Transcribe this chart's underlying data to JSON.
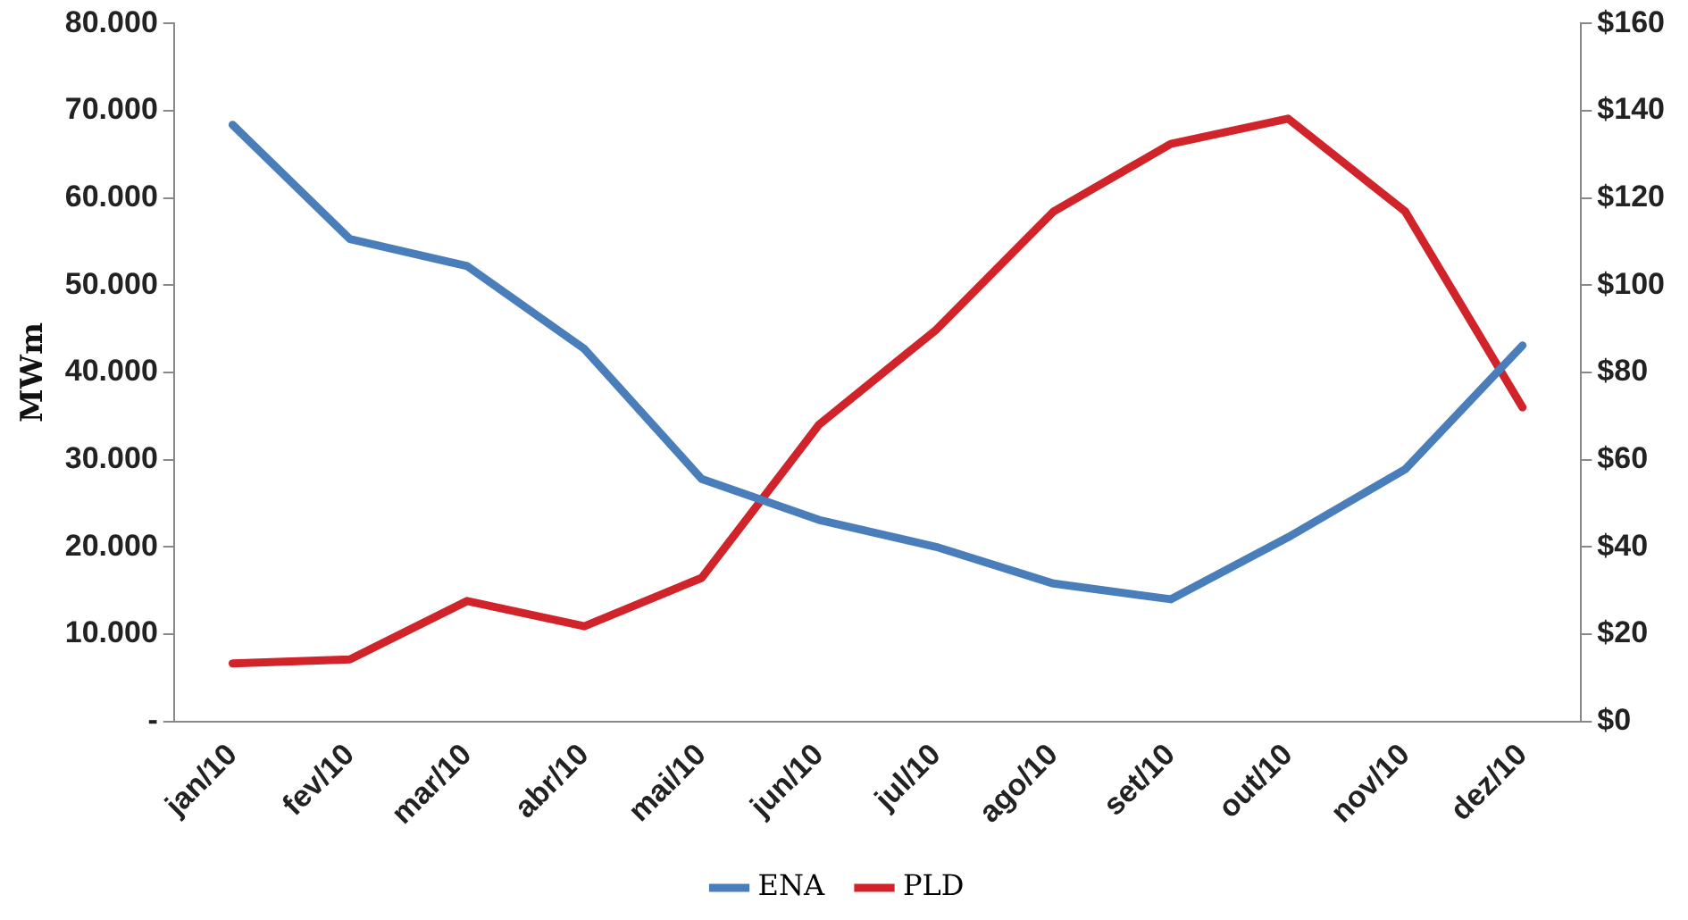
{
  "chart_data": {
    "type": "line",
    "ylabel": "MWm",
    "categories": [
      "jan/10",
      "fev/10",
      "mar/10",
      "abr/10",
      "mai/10",
      "jun/10",
      "jul/10",
      "ago/10",
      "set/10",
      "out/10",
      "nov/10",
      "dez/10"
    ],
    "series": [
      {
        "name": "ENA",
        "color": "#4a7ebb",
        "values": [
          68400,
          55300,
          52200,
          42700,
          27800,
          23100,
          20000,
          15800,
          14000,
          21100,
          28900,
          43100
        ]
      },
      {
        "name": "PLD",
        "color": "#d0232a",
        "axis": "y2",
        "values": [
          13.3,
          14.2,
          27.6,
          21.8,
          32.9,
          68,
          89.8,
          116.9,
          132.4,
          138.2,
          116.9,
          72
        ]
      }
    ],
    "ylim": [
      0,
      80000
    ],
    "yticks": [
      {
        "value": 0,
        "label": "-"
      },
      {
        "value": 10000,
        "label": "10.000"
      },
      {
        "value": 20000,
        "label": "20.000"
      },
      {
        "value": 30000,
        "label": "30.000"
      },
      {
        "value": 40000,
        "label": "40.000"
      },
      {
        "value": 50000,
        "label": "50.000"
      },
      {
        "value": 60000,
        "label": "60.000"
      },
      {
        "value": 70000,
        "label": "70.000"
      },
      {
        "value": 80000,
        "label": "80.000"
      }
    ],
    "y2lim": [
      0,
      160
    ],
    "y2ticks": [
      {
        "value": 0,
        "label": "$0"
      },
      {
        "value": 20,
        "label": "$20"
      },
      {
        "value": 40,
        "label": "$40"
      },
      {
        "value": 60,
        "label": "$60"
      },
      {
        "value": 80,
        "label": "$80"
      },
      {
        "value": 100,
        "label": "$100"
      },
      {
        "value": 120,
        "label": "$120"
      },
      {
        "value": 140,
        "label": "$140"
      },
      {
        "value": 160,
        "label": "$160"
      }
    ],
    "grid": false,
    "legend": "bottom",
    "marker": "none",
    "line_style": "solid"
  }
}
